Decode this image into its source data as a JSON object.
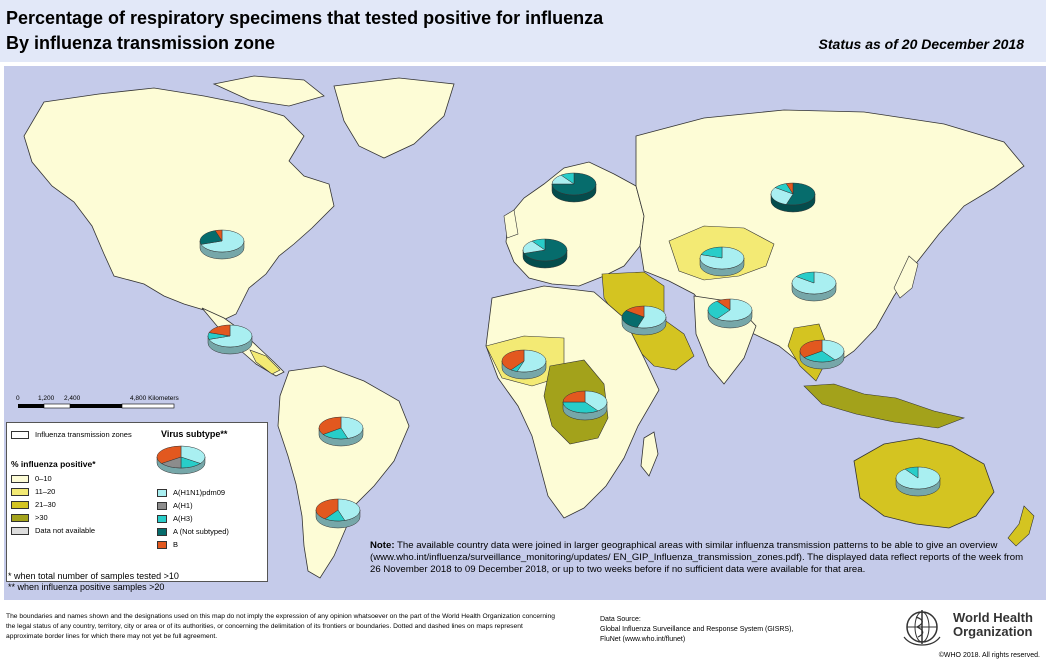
{
  "header": {
    "title_line1": "Percentage of respiratory specimens that tested positive for influenza",
    "title_line2": "By influenza transmission zone",
    "status": "Status as of 20 December 2018"
  },
  "colors": {
    "ocean": "#c5cbea",
    "land_0_10": "#fdfcd6",
    "land_11_20": "#f3ea74",
    "land_21_30": "#d4c421",
    "land_gt30": "#a3a21b",
    "no_data": "#dddddd",
    "AH1N1pdm09": "#a9eff1",
    "AH1": "#8c8c8c",
    "AH3": "#28cdc9",
    "A_not_subtyped": "#066c6c",
    "B": "#e2581f"
  },
  "scale": {
    "ticks": [
      "0",
      "1,200",
      "2,400",
      "4,800 Kilometers"
    ]
  },
  "legend": {
    "zones_label": "Influenza transmission zones",
    "virus_subtype_title": "Virus subtype**",
    "pct_title": "% influenza positive*",
    "pct_items": [
      {
        "label": "0–10",
        "color_key": "land_0_10"
      },
      {
        "label": "11–20",
        "color_key": "land_11_20"
      },
      {
        "label": "21–30",
        "color_key": "land_21_30"
      },
      {
        "label": ">30",
        "color_key": "land_gt30"
      },
      {
        "label": "Data not available",
        "color_key": "no_data"
      }
    ],
    "subtype_items": [
      {
        "label": "A(H1N1)pdm09",
        "color_key": "AH1N1pdm09"
      },
      {
        "label": "A(H1)",
        "color_key": "AH1"
      },
      {
        "label": "A(H3)",
        "color_key": "AH3"
      },
      {
        "label": "A (Not subtyped)",
        "color_key": "A_not_subtyped"
      },
      {
        "label": "B",
        "color_key": "B"
      }
    ]
  },
  "footnotes": {
    "samples_tested": "*   when total number of samples tested >10",
    "positive_samples": "** when influenza positive samples >20"
  },
  "note": {
    "label": "Note:",
    "text": "The available country data were joined in larger geographical areas with similar influenza transmission patterns to be able to give an overview (www.who.int/influenza/surveillance_monitoring/updates/ EN_GIP_Influenza_transmission_zones.pdf). The displayed data reflect reports of the week from 26 November 2018 to 09 December 2018, or up to two weeks before if no sufficient data were available for that area."
  },
  "disclaimer": "The boundaries and names shown and the designations used on this map do not imply the expression of any opinion whatsoever on the part of the World Health Organization concerning the legal status of any country, territory, city or area or of its authorities, or concerning the delimitation of its frontiers or boundaries. Dotted and dashed lines on maps represent approximate border lines for which there may not yet be full agreement.",
  "data_source": {
    "label": "Data Source:",
    "line1": "Global Influenza Surveillance and Response System (GISRS),",
    "line2": "FluNet (www.who.int/flunet)"
  },
  "who": {
    "name_line1": "World Health",
    "name_line2": "Organization",
    "copyright": "©WHO 2018. All rights reserved."
  },
  "pies": [
    {
      "region": "north-america",
      "slices": [
        [
          "AH1N1pdm09",
          0.7
        ],
        [
          "A_not_subtyped",
          0.25
        ],
        [
          "B",
          0.05
        ]
      ]
    },
    {
      "region": "central-america",
      "slices": [
        [
          "AH1N1pdm09",
          0.7
        ],
        [
          "AH3",
          0.1
        ],
        [
          "B",
          0.2
        ]
      ]
    },
    {
      "region": "tropical-south-america",
      "slices": [
        [
          "AH1N1pdm09",
          0.45
        ],
        [
          "AH3",
          0.2
        ],
        [
          "B",
          0.35
        ]
      ]
    },
    {
      "region": "temperate-south-america",
      "slices": [
        [
          "AH1N1pdm09",
          0.45
        ],
        [
          "AH3",
          0.15
        ],
        [
          "B",
          0.4
        ]
      ]
    },
    {
      "region": "northern-europe",
      "slices": [
        [
          "A_not_subtyped",
          0.75
        ],
        [
          "AH1N1pdm09",
          0.15
        ],
        [
          "AH3",
          0.1
        ]
      ]
    },
    {
      "region": "south-west-europe",
      "slices": [
        [
          "A_not_subtyped",
          0.7
        ],
        [
          "AH1N1pdm09",
          0.2
        ],
        [
          "AH3",
          0.1
        ]
      ]
    },
    {
      "region": "eastern-europe",
      "slices": [
        [
          "A_not_subtyped",
          0.55
        ],
        [
          "AH1N1pdm09",
          0.3
        ],
        [
          "AH3",
          0.1
        ],
        [
          "B",
          0.05
        ]
      ]
    },
    {
      "region": "central-asia",
      "slices": [
        [
          "AH1N1pdm09",
          0.8
        ],
        [
          "AH3",
          0.2
        ]
      ]
    },
    {
      "region": "eastern-asia",
      "slices": [
        [
          "AH1N1pdm09",
          0.85
        ],
        [
          "AH3",
          0.15
        ]
      ]
    },
    {
      "region": "western-asia",
      "slices": [
        [
          "AH1N1pdm09",
          0.55
        ],
        [
          "A_not_subtyped",
          0.3
        ],
        [
          "B",
          0.15
        ]
      ]
    },
    {
      "region": "southern-asia",
      "slices": [
        [
          "AH1N1pdm09",
          0.6
        ],
        [
          "AH3",
          0.3
        ],
        [
          "B",
          0.1
        ]
      ]
    },
    {
      "region": "south-east-asia",
      "slices": [
        [
          "AH1N1pdm09",
          0.4
        ],
        [
          "AH3",
          0.25
        ],
        [
          "B",
          0.35
        ]
      ]
    },
    {
      "region": "western-africa",
      "slices": [
        [
          "AH1N1pdm09",
          0.55
        ],
        [
          "AH3",
          0.05
        ],
        [
          "B",
          0.4
        ]
      ]
    },
    {
      "region": "middle-africa",
      "slices": [
        [
          "AH1N1pdm09",
          0.4
        ],
        [
          "AH3",
          0.35
        ],
        [
          "B",
          0.25
        ]
      ]
    },
    {
      "region": "oceania",
      "slices": [
        [
          "AH1N1pdm09",
          0.9
        ],
        [
          "AH3",
          0.1
        ]
      ]
    },
    {
      "region": "legend-sample",
      "slices": [
        [
          "AH1N1pdm09",
          0.35
        ],
        [
          "AH3",
          0.15
        ],
        [
          "AH1",
          0.15
        ],
        [
          "B",
          0.35
        ]
      ]
    }
  ]
}
